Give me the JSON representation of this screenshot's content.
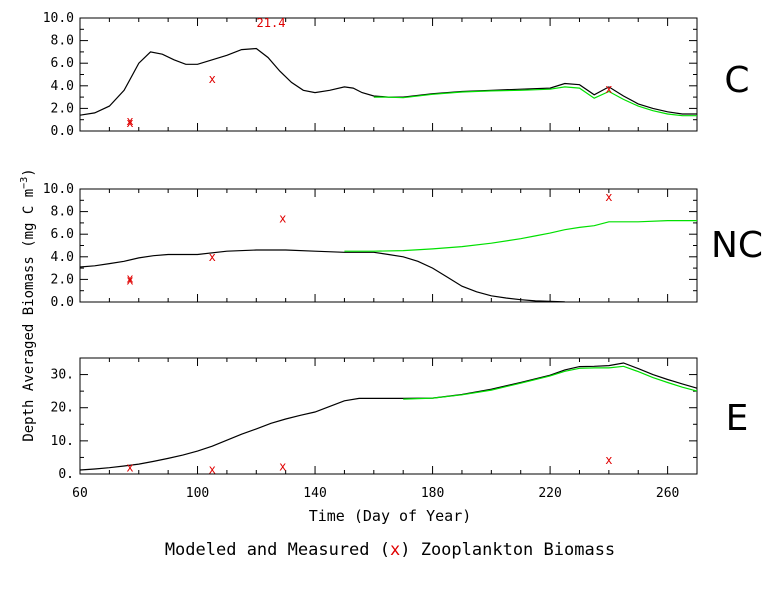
{
  "chart_data": {
    "type": "line",
    "ylabel_parts": [
      "Depth Averaged Biomass (mg C m",
      "−3",
      ")"
    ],
    "xlabel": "Time (Day of Year)",
    "caption_parts": [
      "Modeled and Measured (",
      "x",
      ") Zooplankton Biomass"
    ],
    "xlim": [
      60,
      270
    ],
    "x_ticks": [
      60,
      100,
      140,
      180,
      220,
      260
    ],
    "colors": {
      "modeled_black": "#000000",
      "modeled_green": "#00e000",
      "measured": "#e00000"
    },
    "panels": [
      {
        "label": "C",
        "ylim": [
          0,
          10
        ],
        "y_ticks": [
          "0.0",
          "2.0",
          "4.0",
          "6.0",
          "8.0",
          "10.0"
        ],
        "y_tick_values": [
          0,
          2,
          4,
          6,
          8,
          10
        ],
        "annotation": {
          "text": "21.4",
          "x": 125,
          "y": 9.2
        },
        "series": [
          {
            "color": "black",
            "x": [
              60,
              65,
              70,
              75,
              80,
              84,
              88,
              92,
              96,
              100,
              105,
              110,
              115,
              120,
              124,
              128,
              132,
              136,
              140,
              145,
              150,
              153,
              156,
              160,
              165,
              170,
              180,
              190,
              200,
              210,
              220,
              225,
              230,
              235,
              240,
              245,
              250,
              255,
              260,
              265,
              270
            ],
            "values": [
              1.4,
              1.6,
              2.2,
              3.6,
              6.0,
              7.0,
              6.8,
              6.3,
              5.9,
              5.9,
              6.3,
              6.7,
              7.2,
              7.3,
              6.5,
              5.3,
              4.3,
              3.6,
              3.4,
              3.6,
              3.9,
              3.8,
              3.4,
              3.1,
              3.0,
              3.0,
              3.3,
              3.5,
              3.6,
              3.7,
              3.8,
              4.2,
              4.1,
              3.2,
              3.9,
              3.1,
              2.4,
              2.0,
              1.7,
              1.5,
              1.5
            ]
          },
          {
            "color": "green",
            "x": [
              160,
              165,
              170,
              180,
              190,
              200,
              210,
              220,
              225,
              230,
              235,
              240,
              245,
              250,
              255,
              260,
              265,
              270
            ],
            "values": [
              3.0,
              3.0,
              2.95,
              3.25,
              3.45,
              3.55,
              3.6,
              3.7,
              3.9,
              3.8,
              2.9,
              3.5,
              2.8,
              2.2,
              1.8,
              1.5,
              1.35,
              1.35
            ]
          }
        ],
        "measured": [
          {
            "x": 77,
            "y": 0.7
          },
          {
            "x": 77,
            "y": 0.9
          },
          {
            "x": 105,
            "y": 4.6
          },
          {
            "x": 240,
            "y": 3.7
          }
        ]
      },
      {
        "label": "NC",
        "ylim": [
          0,
          10
        ],
        "y_ticks": [
          "0.0",
          "2.0",
          "4.0",
          "6.0",
          "8.0",
          "10.0"
        ],
        "y_tick_values": [
          0,
          2,
          4,
          6,
          8,
          10
        ],
        "series": [
          {
            "color": "black",
            "x": [
              60,
              65,
              70,
              75,
              80,
              85,
              90,
              100,
              110,
              120,
              130,
              140,
              150,
              160,
              165,
              170,
              175,
              180,
              185,
              190,
              195,
              200,
              205,
              210,
              215,
              220,
              225
            ],
            "values": [
              3.1,
              3.2,
              3.4,
              3.6,
              3.9,
              4.1,
              4.2,
              4.2,
              4.5,
              4.6,
              4.6,
              4.5,
              4.4,
              4.4,
              4.2,
              4.0,
              3.6,
              3.0,
              2.2,
              1.4,
              0.9,
              0.55,
              0.35,
              0.2,
              0.1,
              0.05,
              0.02
            ]
          },
          {
            "color": "green",
            "x": [
              150,
              160,
              170,
              180,
              190,
              200,
              210,
              215,
              220,
              225,
              230,
              235,
              240,
              250,
              260,
              270
            ],
            "values": [
              4.5,
              4.5,
              4.55,
              4.7,
              4.9,
              5.2,
              5.6,
              5.85,
              6.1,
              6.4,
              6.6,
              6.75,
              7.1,
              7.1,
              7.2,
              7.2
            ]
          }
        ],
        "measured": [
          {
            "x": 77,
            "y": 1.9
          },
          {
            "x": 77,
            "y": 2.1
          },
          {
            "x": 105,
            "y": 4.0
          },
          {
            "x": 129,
            "y": 7.4
          },
          {
            "x": 240,
            "y": 9.3
          }
        ]
      },
      {
        "label": "E",
        "ylim": [
          0,
          35
        ],
        "y_ticks": [
          "0.",
          "10.",
          "20.",
          "30."
        ],
        "y_tick_values": [
          0,
          10,
          20,
          30
        ],
        "series": [
          {
            "color": "black",
            "x": [
              60,
              65,
              70,
              75,
              80,
              85,
              90,
              95,
              100,
              105,
              110,
              115,
              120,
              125,
              130,
              135,
              140,
              145,
              150,
              155,
              160,
              170,
              180,
              190,
              200,
              210,
              220,
              225,
              230,
              235,
              240,
              245,
              250,
              255,
              260,
              265,
              270
            ],
            "values": [
              1.2,
              1.5,
              1.9,
              2.4,
              3.0,
              3.8,
              4.7,
              5.7,
              6.9,
              8.4,
              10.2,
              12.0,
              13.6,
              15.3,
              16.6,
              17.7,
              18.7,
              20.4,
              22.1,
              22.8,
              22.8,
              22.8,
              22.9,
              24.0,
              25.6,
              27.6,
              29.8,
              31.4,
              32.4,
              32.5,
              32.7,
              33.5,
              31.8,
              30.0,
              28.5,
              27.2,
              25.9
            ]
          },
          {
            "color": "green",
            "x": [
              170,
              180,
              190,
              200,
              210,
              220,
              225,
              230,
              235,
              240,
              245,
              250,
              255,
              260,
              265,
              270
            ],
            "values": [
              22.6,
              22.9,
              23.9,
              25.3,
              27.4,
              29.6,
              31.0,
              31.9,
              32.0,
              32.0,
              32.5,
              30.9,
              29.1,
              27.6,
              26.2,
              25.0
            ]
          }
        ],
        "measured": [
          {
            "x": 77,
            "y": 2.0
          },
          {
            "x": 105,
            "y": 1.4
          },
          {
            "x": 129,
            "y": 2.3
          },
          {
            "x": 240,
            "y": 4.2
          }
        ]
      }
    ]
  }
}
